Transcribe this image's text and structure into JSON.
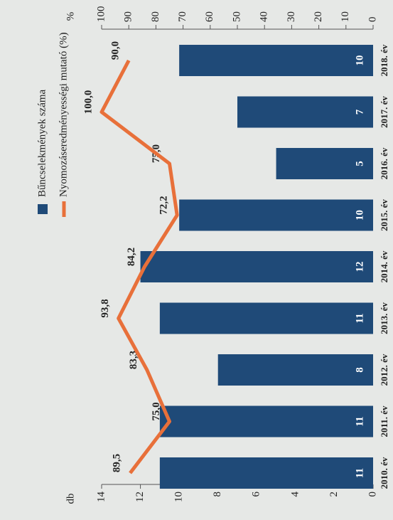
{
  "chart_data": {
    "type": "bar-line",
    "categories": [
      "2010. év",
      "2011. év",
      "2012. év",
      "2013. év",
      "2014. év",
      "2015. év",
      "2016. év",
      "2017. év",
      "2018. év"
    ],
    "series": [
      {
        "name": "Bűncselekmények száma",
        "type": "bar",
        "color": "#1f4a78",
        "values": [
          11,
          11,
          8,
          11,
          12,
          10,
          5,
          7,
          10
        ]
      },
      {
        "name": "Nyomozáseredményességi mutató (%)",
        "type": "line",
        "axis": "y2",
        "color": "#e8703a",
        "values": [
          89.5,
          75.0,
          83.3,
          93.8,
          84.2,
          72.2,
          75.0,
          100.0,
          90.0
        ],
        "value_labels": [
          "89,5",
          "75,0",
          "83,3",
          "93,8",
          "84,2",
          "72,2",
          "75,0",
          "100,0",
          "90,0"
        ]
      }
    ],
    "y_label": "db",
    "y2_label": "%",
    "ylim": [
      0,
      14
    ],
    "yticks": [
      0,
      2,
      4,
      6,
      8,
      10,
      12,
      14
    ],
    "y2lim": [
      0,
      100
    ],
    "y2ticks": [
      0,
      10,
      20,
      30,
      40,
      50,
      60,
      70,
      80,
      90,
      100
    ],
    "legend": "top-left"
  }
}
